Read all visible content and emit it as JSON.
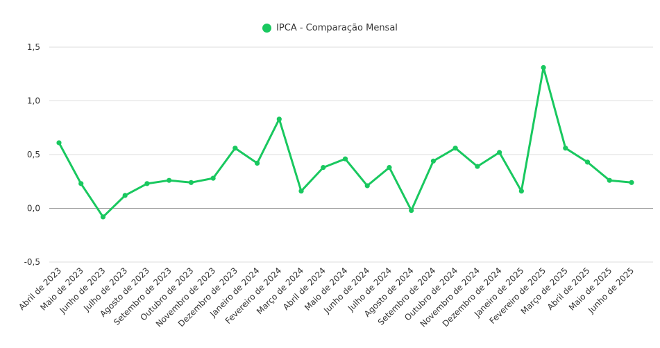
{
  "chart_data": {
    "type": "line",
    "legend_position": "top-center",
    "grid": true,
    "series_color": "#19c85f",
    "x": [
      "Abril de 2023",
      "Maio de 2023",
      "Junho de 2023",
      "Julho de 2023",
      "Agosto de 2023",
      "Setembro de 2023",
      "Outubro de 2023",
      "Novembro de 2023",
      "Dezembro de 2023",
      "Janeiro de 2024",
      "Fevereiro de 2024",
      "Março de 2024",
      "Abril de 2024",
      "Maio de 2024",
      "Junho de 2024",
      "Julho de 2024",
      "Agosto de 2024",
      "Setembro de 2024",
      "Outubro de 2024",
      "Novembro de 2024",
      "Dezembro de 2024",
      "Janeiro de 2025",
      "Fevereiro de 2025",
      "Março de 2025",
      "Abril de 2025",
      "Maio de 2025",
      "Junho de 2025"
    ],
    "series": [
      {
        "name": "IPCA - Comparação Mensal",
        "values": [
          0.61,
          0.23,
          -0.08,
          0.12,
          0.23,
          0.26,
          0.24,
          0.28,
          0.56,
          0.42,
          0.83,
          0.16,
          0.38,
          0.46,
          0.21,
          0.38,
          -0.02,
          0.44,
          0.56,
          0.39,
          0.52,
          0.16,
          1.31,
          0.56,
          0.43,
          0.26,
          0.24
        ]
      }
    ],
    "yticks": [
      "1,5",
      "1,0",
      "0,5",
      "0,0",
      "-0,5"
    ],
    "ylim": [
      -0.5,
      1.5
    ]
  }
}
